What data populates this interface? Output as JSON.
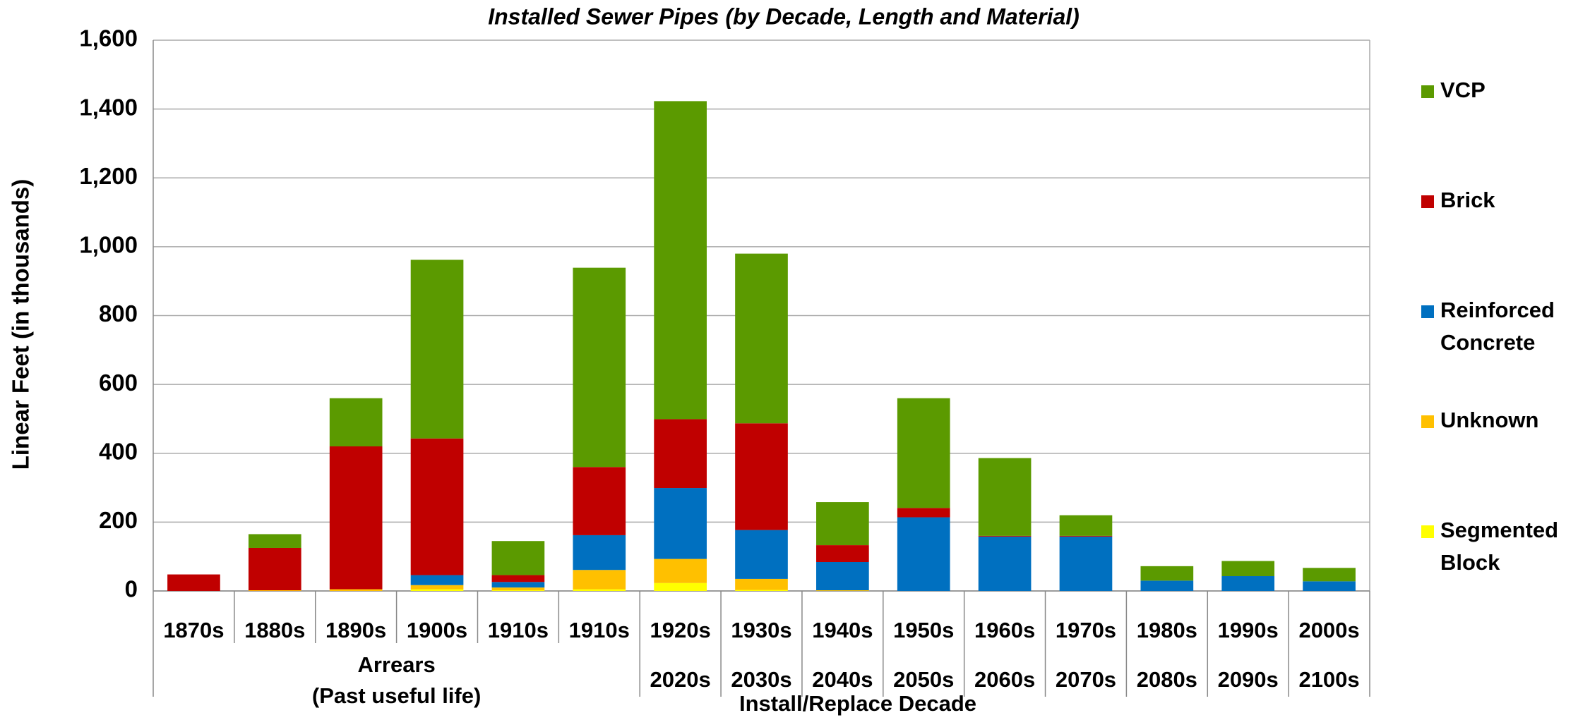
{
  "chart_data": {
    "type": "stacked_bar",
    "title": "Installed Sewer Pipes (by Decade, Length and Material)",
    "y_label": "Linear Feet  (in thousands)",
    "x_label": "Install/Replace Decade",
    "categories": [
      "1870s",
      "1880s",
      "1890s",
      "1900s",
      "1910s",
      "1910s",
      "1920s",
      "1930s",
      "1940s",
      "1950s",
      "1960s",
      "1970s",
      "1980s",
      "1990s",
      "2000s"
    ],
    "categories_2": [
      null,
      null,
      null,
      null,
      null,
      null,
      "2020s",
      "2030s",
      "2040s",
      "2050s",
      "2060s",
      "2070s",
      "2080s",
      "2090s",
      "2100s"
    ],
    "group_label": [
      "Arrears",
      "(Past useful life)"
    ],
    "series": [
      {
        "name": "Segmented Block",
        "color": "#ffff00",
        "values": [
          0,
          0,
          0,
          5,
          2,
          5,
          23,
          3,
          0,
          0,
          0,
          0,
          0,
          0,
          0
        ]
      },
      {
        "name": "Unknown",
        "color": "#ffc000",
        "values": [
          0,
          2,
          5,
          12,
          8,
          56,
          70,
          32,
          2,
          0,
          0,
          0,
          0,
          0,
          0
        ]
      },
      {
        "name": "Reinforced Concrete",
        "color": "#0070c0",
        "values": [
          0,
          0,
          0,
          29,
          16,
          101,
          206,
          142,
          82,
          214,
          158,
          158,
          30,
          43,
          28
        ]
      },
      {
        "name": "Brick",
        "color": "#c00000",
        "values": [
          48,
          123,
          415,
          397,
          20,
          198,
          200,
          310,
          49,
          27,
          2,
          2,
          0,
          0,
          0
        ]
      },
      {
        "name": "VCP",
        "color": "#5b9a00",
        "values": [
          0,
          40,
          140,
          519,
          99,
          579,
          924,
          493,
          125,
          319,
          226,
          60,
          42,
          44,
          39
        ]
      }
    ],
    "ylim": [
      0,
      1600
    ],
    "yticks": [
      0,
      {
        "value": 200,
        "label": "200"
      },
      400,
      600,
      800,
      {
        "value": 1000,
        "label": "1,000"
      },
      {
        "value": 1200,
        "label": "1,200"
      },
      {
        "value": 1400,
        "label": "1,400"
      },
      {
        "value": 1600,
        "label": "1,600"
      }
    ],
    "grid": true,
    "legend": "right"
  }
}
